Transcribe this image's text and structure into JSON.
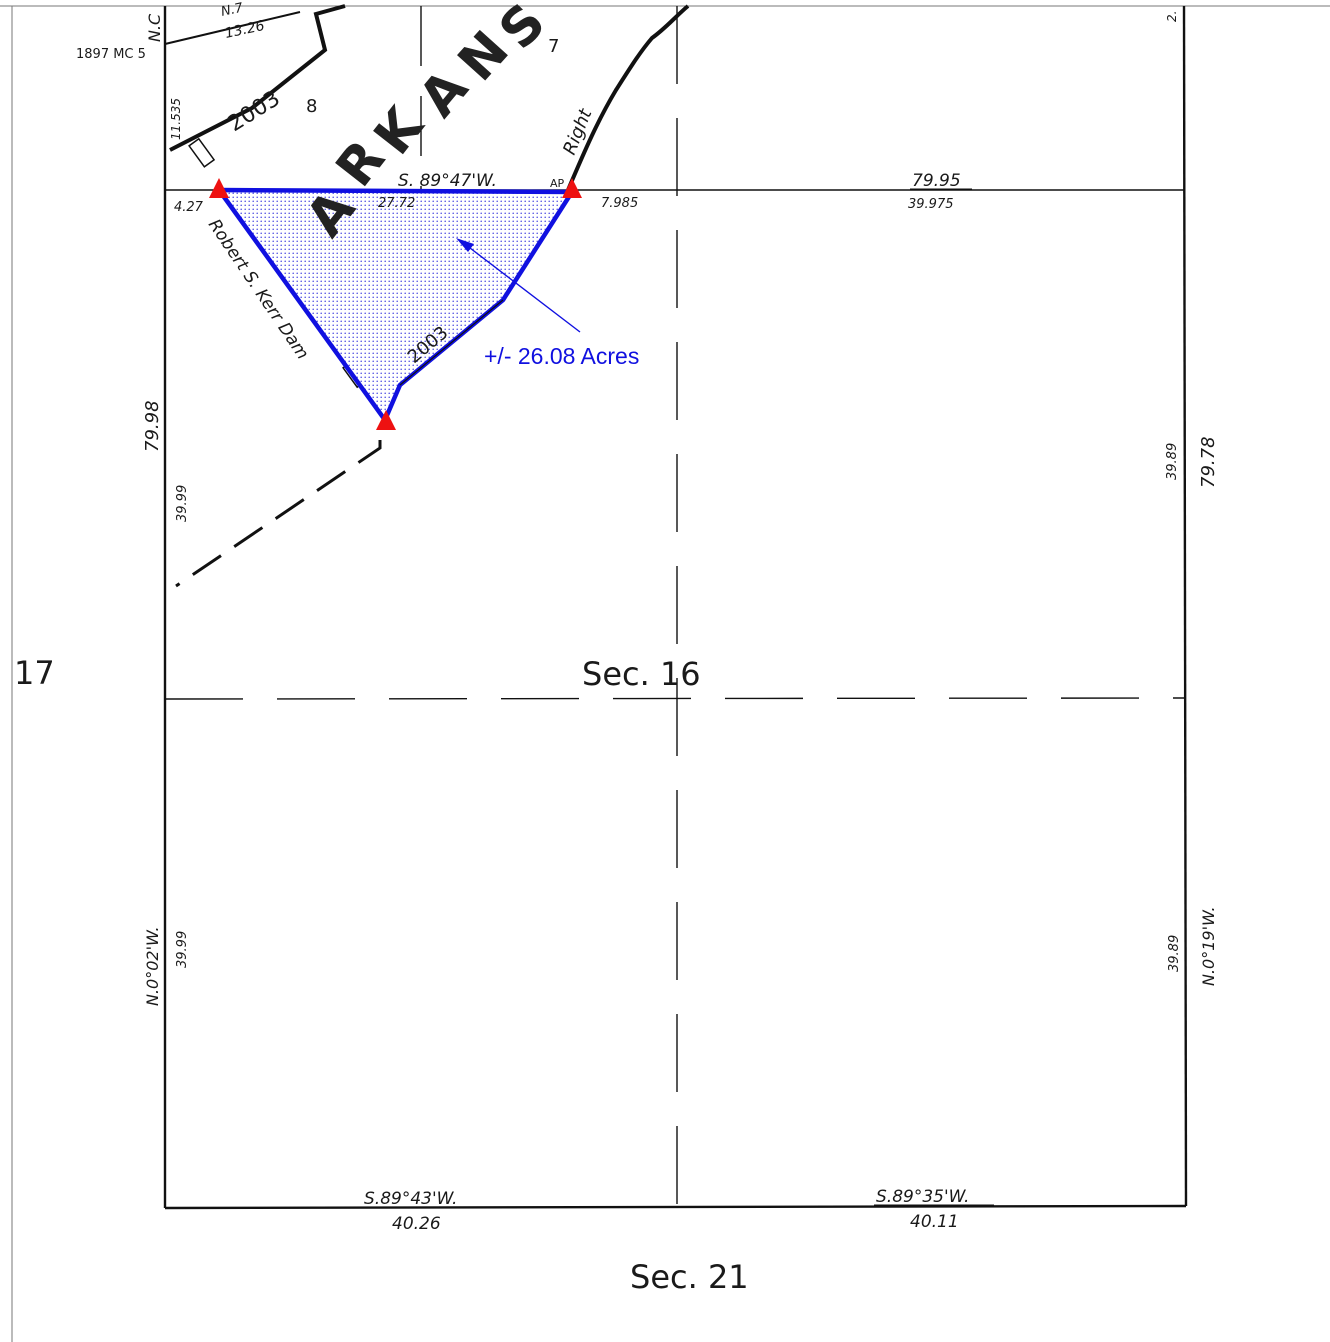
{
  "map": {
    "section_labels": {
      "sec16": "Sec. 16",
      "sec21": "Sec. 21",
      "sec17": "17"
    },
    "river_name": "ARKANSAS",
    "river_letters": [
      "A",
      "R",
      "K",
      "A",
      "N",
      "S"
    ],
    "dam_label": "Robert S. Kerr Dam",
    "right_label": "Right",
    "ap_label": "AP",
    "annotation": "+/- 26.08 Acres",
    "colors": {
      "boundary": "#1010e0",
      "vertex_marker": "#ee1111",
      "annotation": "#1010e0",
      "line": "#111111",
      "fill_dots": "#4a4ae0"
    },
    "icons": {
      "vertex_marker": "red-triangle-icon",
      "leader": "arrow-icon"
    },
    "top_labels": {
      "n_fragment": "N.7",
      "dist_1326": "13.26",
      "mc_label": "1897 MC 5",
      "nc_fragment": "N.C",
      "tract_2003_upper": "2003",
      "tract_2003_lower": "2003",
      "lot_7": "7",
      "lot_8": "8",
      "dist_11535": "11.535",
      "corner_fragment": "2."
    },
    "bearings": {
      "north_line": "S. 89°47'W.",
      "south_left": "S.89°43'W.",
      "south_right": "S.89°35'W.",
      "west": "N.0°02'W.",
      "east": "N.0°19'W."
    },
    "distances": {
      "d427": "4.27",
      "d2772": "27.72",
      "d7985": "7.985",
      "d7995": "79.95",
      "d39975": "39.975",
      "d7998": "79.98",
      "d3999_upper": "39.99",
      "d3999_lower": "39.99",
      "d3989_upper": "39.89",
      "d3989_lower": "39.89",
      "d7978": "79.78",
      "d4026": "40.26",
      "d4011": "40.11"
    }
  }
}
